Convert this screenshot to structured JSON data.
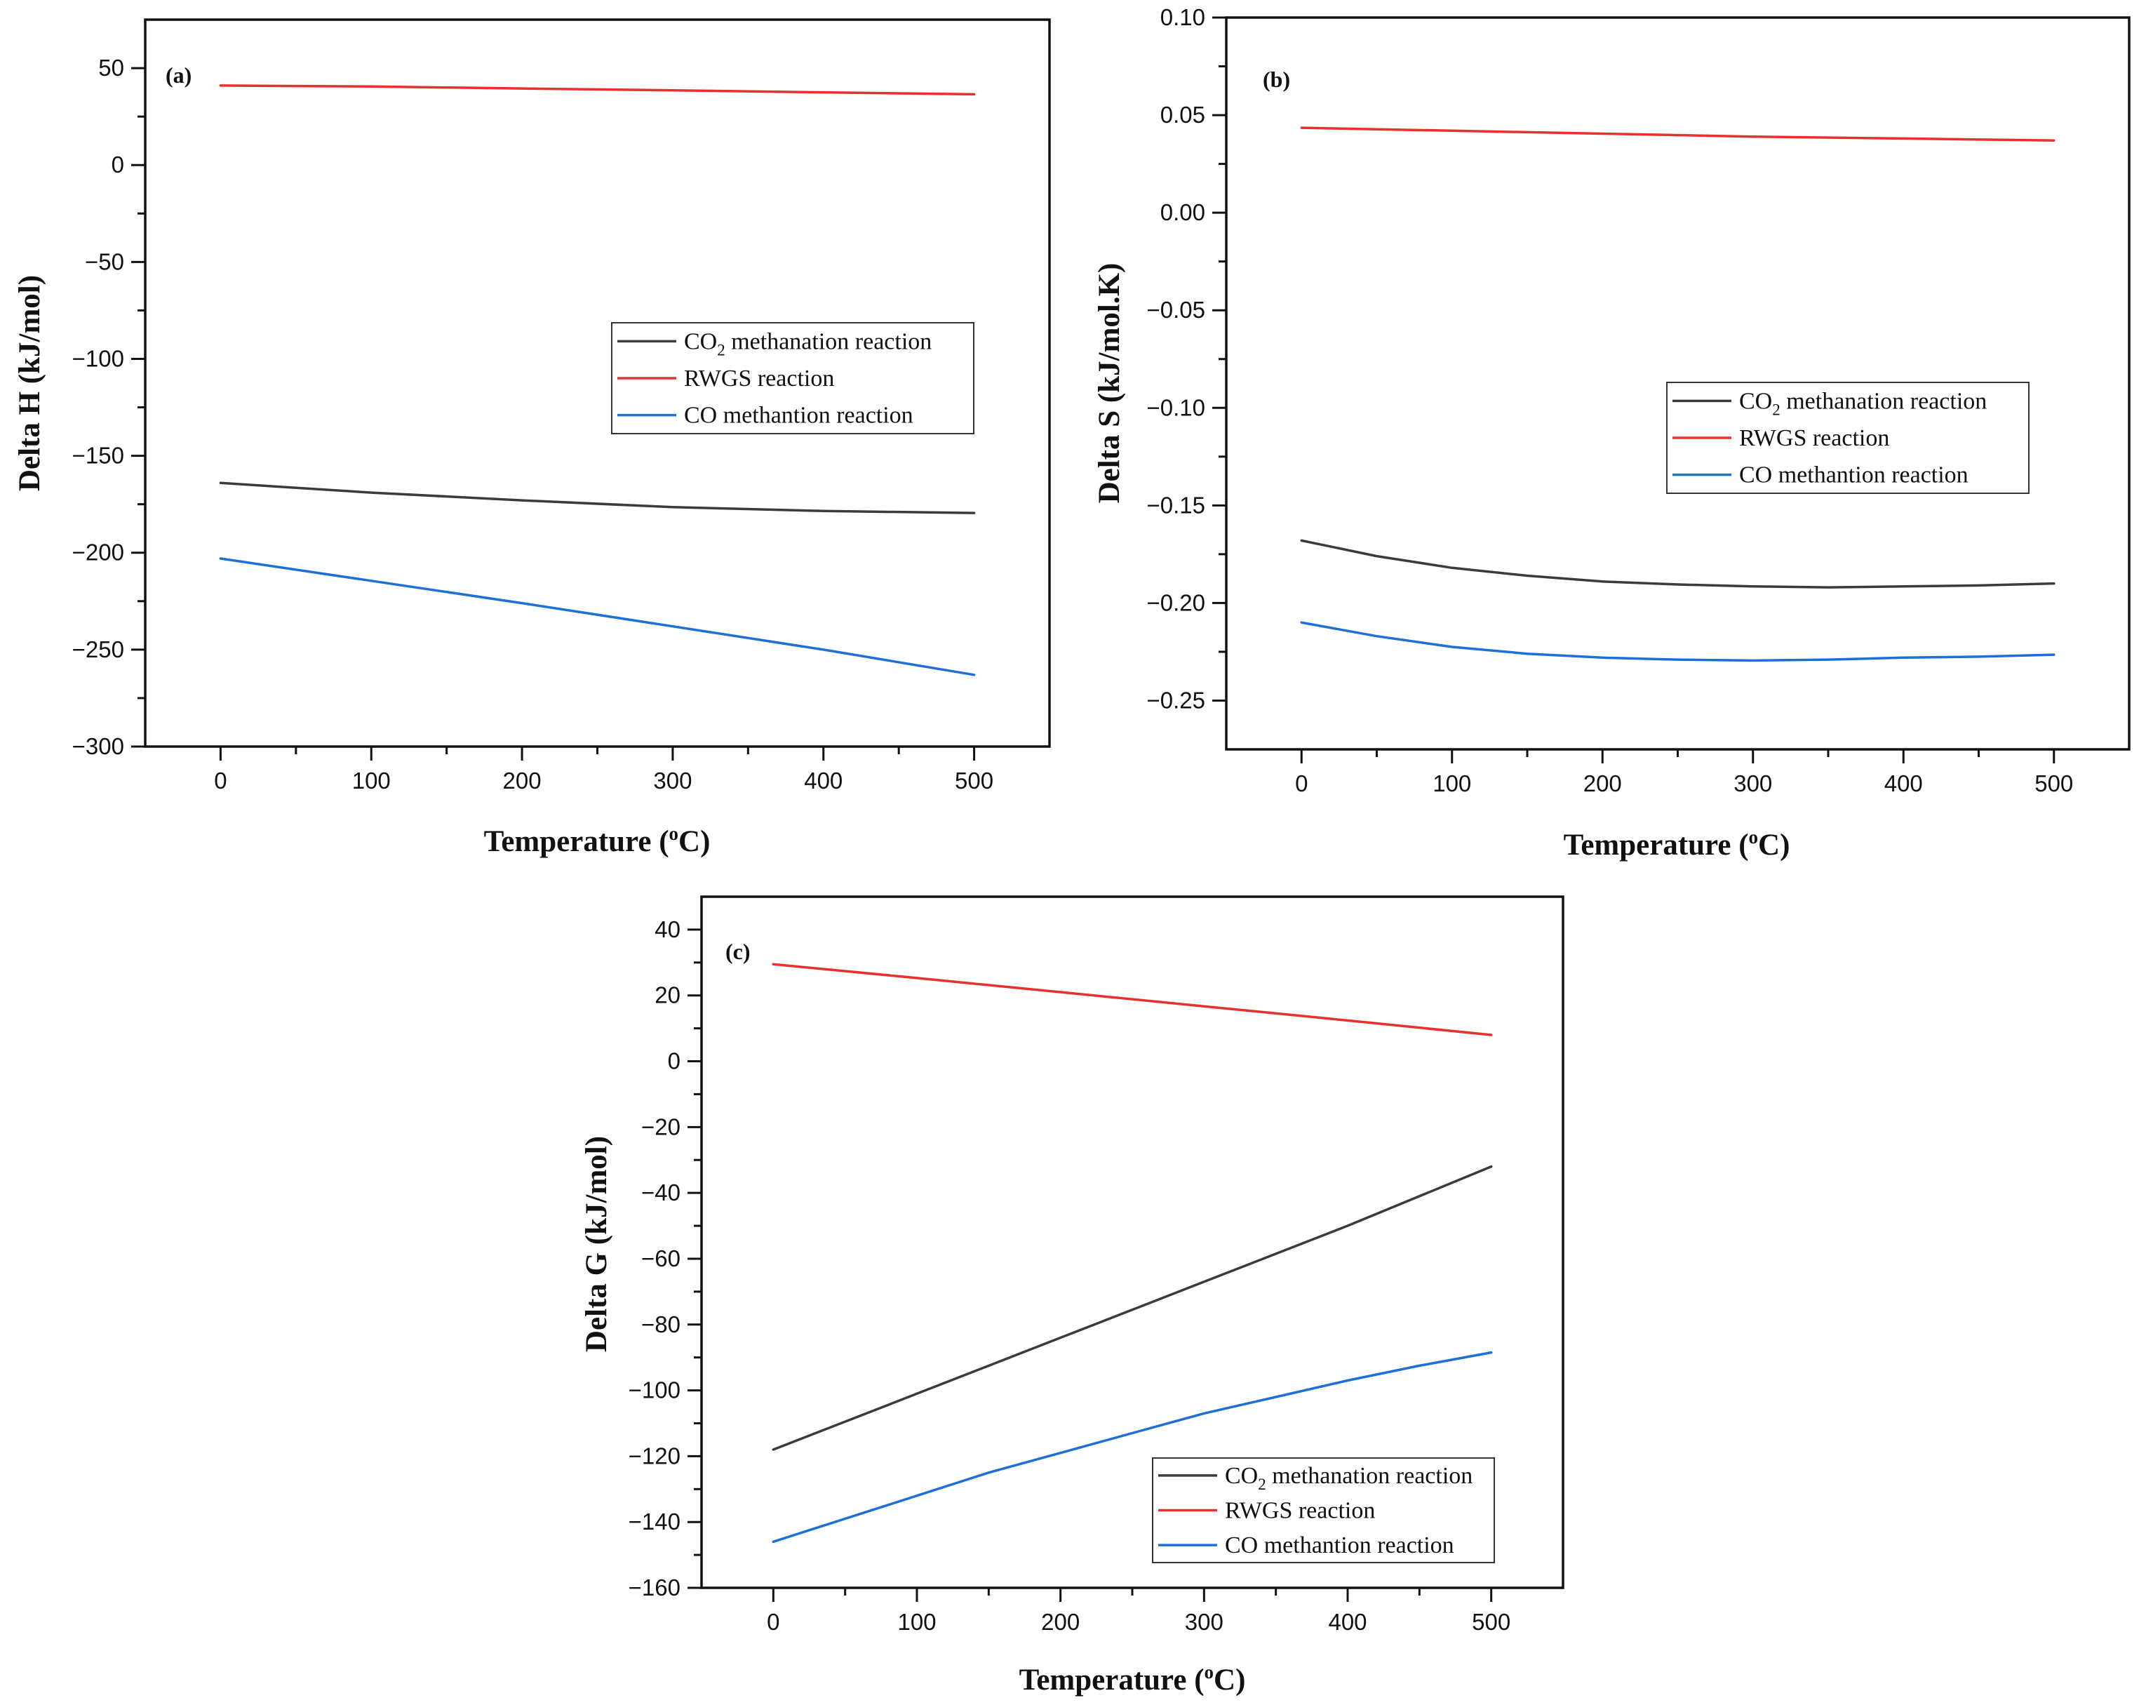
{
  "figure": {
    "series_colors": {
      "co2_methanation": "#3b3b3b",
      "rwgs": "#e8302c",
      "co_methanation": "#1f6fd9"
    }
  },
  "chart_data": [
    {
      "id": "a",
      "type": "line",
      "panel_label": "(a)",
      "xlabel_prefix": "Temperature (",
      "xlabel_sup": "o",
      "xlabel_suffix": "C)",
      "ylabel": "Delta H (kJ/mol)",
      "xlim": [
        -50,
        550
      ],
      "ylim": [
        -300,
        75
      ],
      "xticks": [
        0,
        100,
        200,
        300,
        400,
        500
      ],
      "yticks": [
        50,
        0,
        -50,
        -100,
        -150,
        -200,
        -250,
        -300
      ],
      "ytick_labels": [
        "50",
        "0",
        "−50",
        "−100",
        "−150",
        "−200",
        "−250",
        "−300"
      ],
      "legend_position": "center-right",
      "legend": [
        {
          "key": "co2_methanation",
          "pre": "CO",
          "sub": "2",
          "post": " methanation reaction"
        },
        {
          "key": "rwgs",
          "pre": "RWGS reaction",
          "sub": "",
          "post": ""
        },
        {
          "key": "co_methanation",
          "pre": "CO methantion reaction",
          "sub": "",
          "post": ""
        }
      ],
      "series": [
        {
          "key": "co2_methanation",
          "x": [
            0,
            100,
            200,
            300,
            400,
            500
          ],
          "y": [
            -164,
            -169,
            -173,
            -176.5,
            -178.5,
            -179.5
          ]
        },
        {
          "key": "rwgs",
          "x": [
            0,
            100,
            200,
            300,
            400,
            500
          ],
          "y": [
            41,
            40.5,
            39.5,
            38.5,
            37.5,
            36.5
          ]
        },
        {
          "key": "co_methanation",
          "x": [
            0,
            100,
            200,
            300,
            400,
            500
          ],
          "y": [
            -203,
            -214.5,
            -226,
            -238,
            -250,
            -263
          ]
        }
      ]
    },
    {
      "id": "b",
      "type": "line",
      "panel_label": "(b)",
      "xlabel_prefix": "Temperature (",
      "xlabel_sup": "o",
      "xlabel_suffix": "C)",
      "ylabel": "Delta S (kJ/mol.K)",
      "xlim": [
        -50,
        550
      ],
      "ylim": [
        -0.275,
        0.1
      ],
      "xticks": [
        0,
        100,
        200,
        300,
        400,
        500
      ],
      "yticks": [
        0.1,
        0.05,
        0,
        -0.05,
        -0.1,
        -0.15,
        -0.2,
        -0.25
      ],
      "ytick_labels": [
        "0.10",
        "0.05",
        "0.00",
        "−0.05",
        "−0.10",
        "−0.15",
        "−0.20",
        "−0.25"
      ],
      "legend_position": "center-right",
      "legend": [
        {
          "key": "co2_methanation",
          "pre": "CO",
          "sub": "2",
          "post": " methanation reaction"
        },
        {
          "key": "rwgs",
          "pre": "RWGS reaction",
          "sub": "",
          "post": ""
        },
        {
          "key": "co_methanation",
          "pre": "CO methantion reaction",
          "sub": "",
          "post": ""
        }
      ],
      "series": [
        {
          "key": "co2_methanation",
          "x": [
            0,
            50,
            100,
            150,
            200,
            250,
            300,
            350,
            400,
            450,
            500
          ],
          "y": [
            -0.168,
            -0.176,
            -0.182,
            -0.186,
            -0.189,
            -0.1905,
            -0.1915,
            -0.192,
            -0.1915,
            -0.191,
            -0.19
          ]
        },
        {
          "key": "rwgs",
          "x": [
            0,
            100,
            200,
            300,
            400,
            500
          ],
          "y": [
            0.0435,
            0.042,
            0.0405,
            0.039,
            0.038,
            0.037
          ]
        },
        {
          "key": "co_methanation",
          "x": [
            0,
            50,
            100,
            150,
            200,
            250,
            300,
            350,
            400,
            450,
            500
          ],
          "y": [
            -0.21,
            -0.217,
            -0.2225,
            -0.226,
            -0.228,
            -0.229,
            -0.2295,
            -0.229,
            -0.228,
            -0.2275,
            -0.2265
          ]
        }
      ]
    },
    {
      "id": "c",
      "type": "line",
      "panel_label": "(c)",
      "xlabel_prefix": "Temperature (",
      "xlabel_sup": "o",
      "xlabel_suffix": "C)",
      "ylabel": "Delta G (kJ/mol)",
      "xlim": [
        -50,
        550
      ],
      "ylim": [
        -160,
        50
      ],
      "xticks": [
        0,
        100,
        200,
        300,
        400,
        500
      ],
      "yticks": [
        40,
        20,
        0,
        -20,
        -40,
        -60,
        -80,
        -100,
        -120,
        -140,
        -160
      ],
      "ytick_labels": [
        "40",
        "20",
        "0",
        "−20",
        "−40",
        "−60",
        "−80",
        "−100",
        "−120",
        "−140",
        "−160"
      ],
      "legend_position": "bottom-right",
      "legend": [
        {
          "key": "co2_methanation",
          "pre": "CO",
          "sub": "2",
          "post": " methanation reaction"
        },
        {
          "key": "rwgs",
          "pre": "RWGS reaction",
          "sub": "",
          "post": ""
        },
        {
          "key": "co_methanation",
          "pre": "CO methantion reaction",
          "sub": "",
          "post": ""
        }
      ],
      "series": [
        {
          "key": "co2_methanation",
          "x": [
            0,
            100,
            200,
            300,
            400,
            500
          ],
          "y": [
            -118,
            -101,
            -84,
            -67,
            -50,
            -32
          ]
        },
        {
          "key": "rwgs",
          "x": [
            0,
            100,
            200,
            300,
            400,
            500
          ],
          "y": [
            29.5,
            25.3,
            21,
            16.7,
            12.4,
            8
          ]
        },
        {
          "key": "co_methanation",
          "x": [
            0,
            50,
            100,
            150,
            200,
            250,
            300,
            350,
            400,
            450,
            500
          ],
          "y": [
            -146,
            -139,
            -132,
            -125,
            -119,
            -113,
            -107,
            -102,
            -97,
            -92.5,
            -88.5
          ]
        }
      ]
    }
  ]
}
